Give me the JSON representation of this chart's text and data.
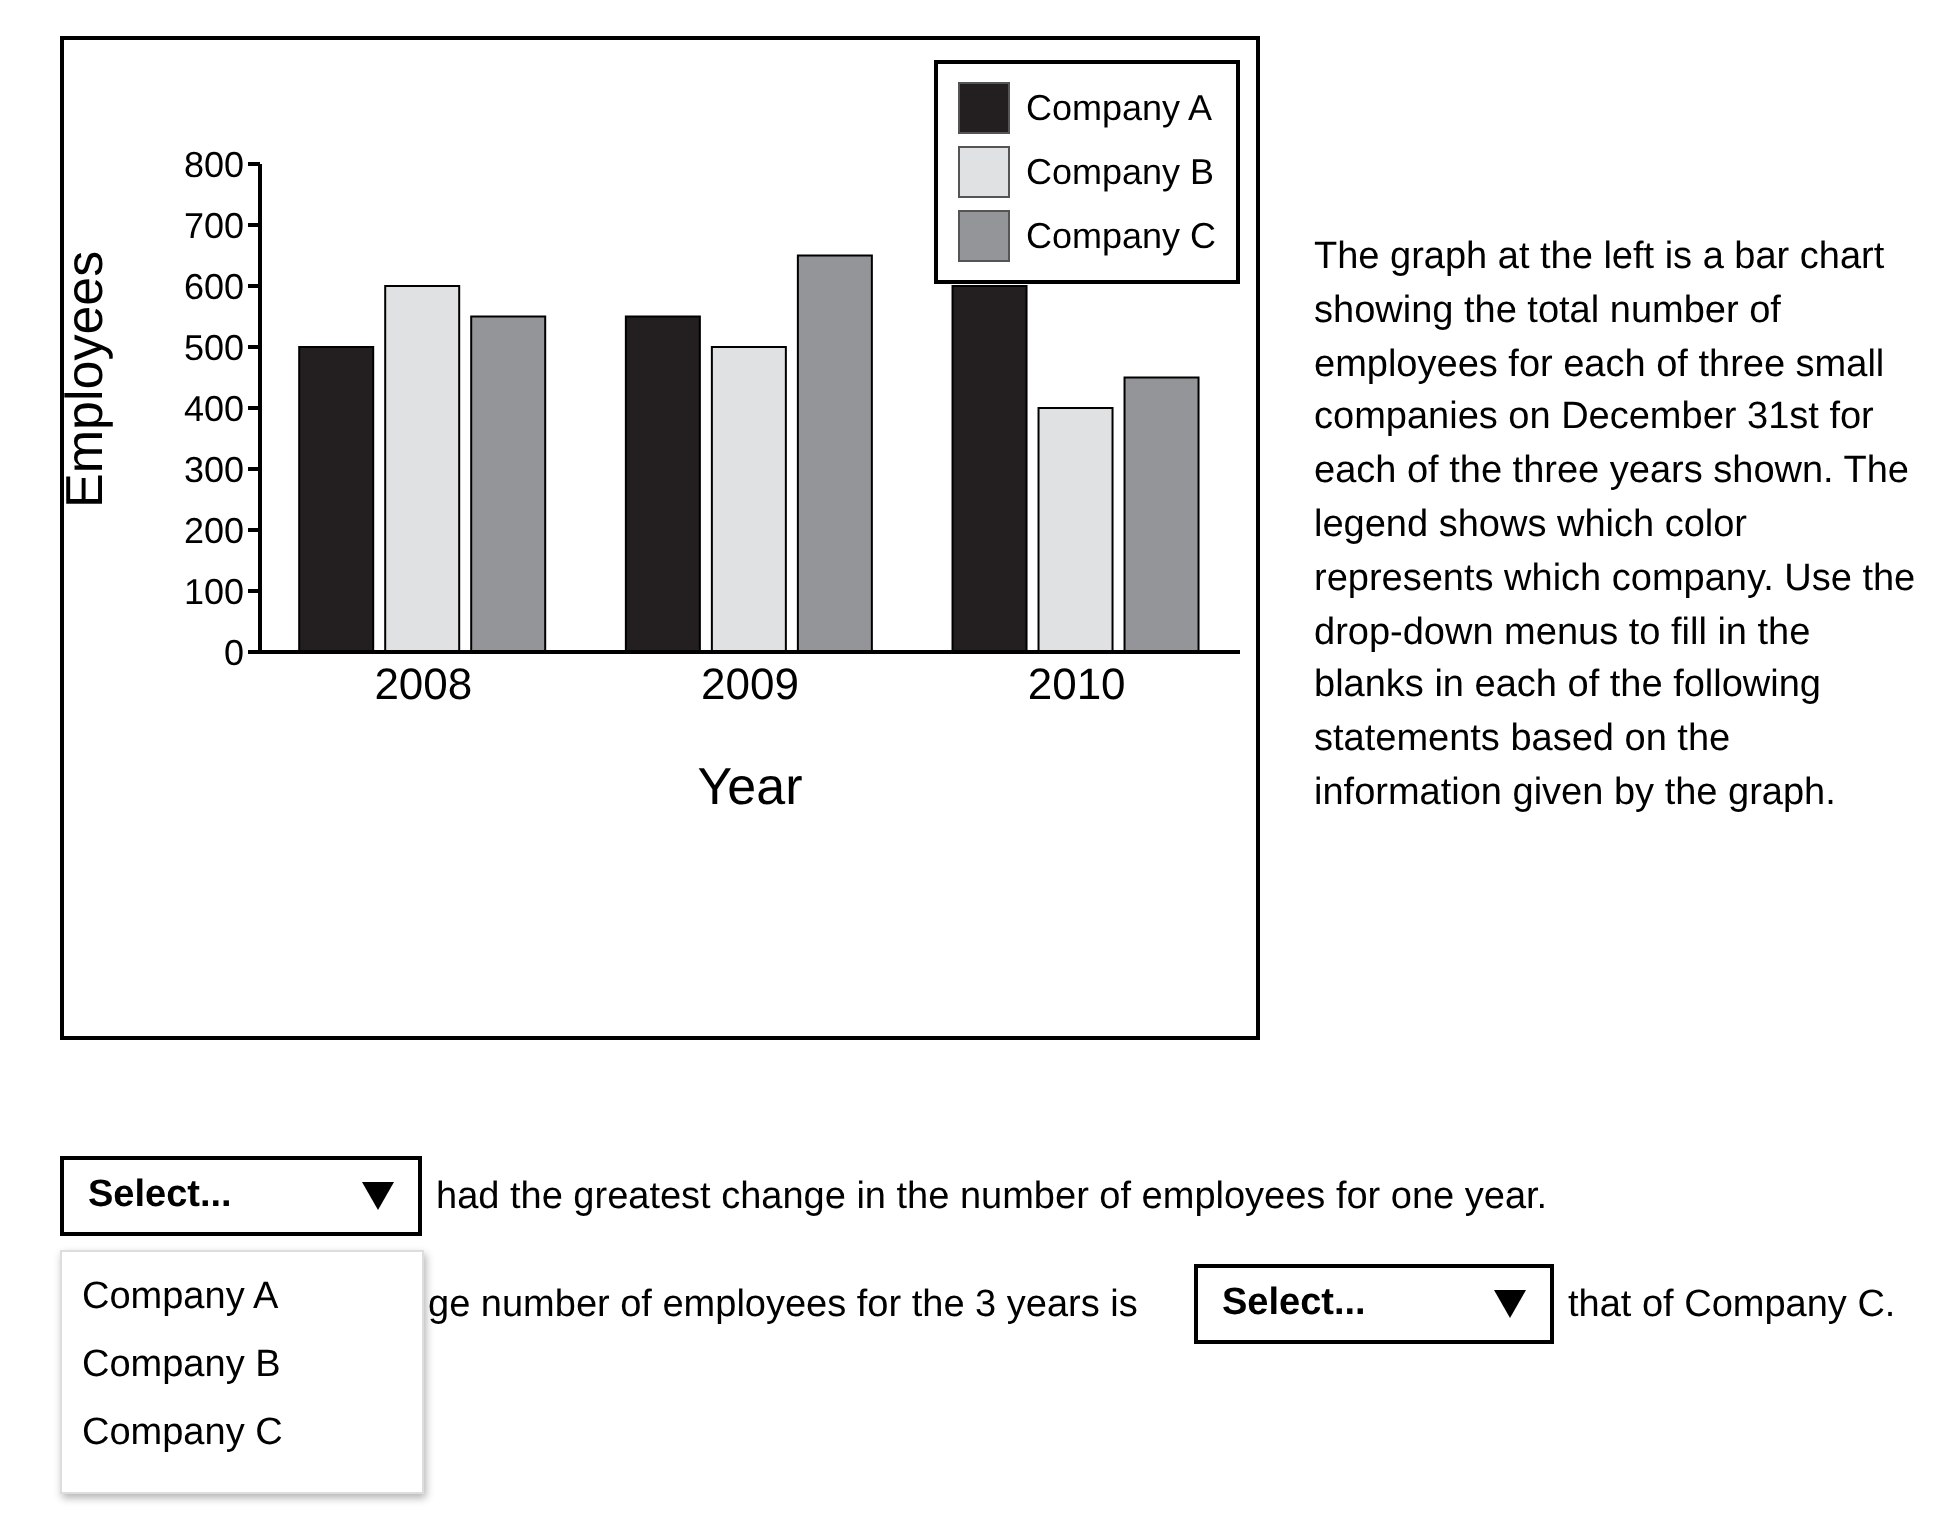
{
  "chart_data": {
    "type": "bar",
    "xlabel": "Year",
    "ylabel": "Employees",
    "categories": [
      "2008",
      "2009",
      "2010"
    ],
    "series": [
      {
        "name": "Company A",
        "color": "#231f20",
        "values": [
          500,
          550,
          600
        ]
      },
      {
        "name": "Company B",
        "color": "#e0e1e2",
        "values": [
          600,
          500,
          400
        ]
      },
      {
        "name": "Company C",
        "color": "#939598",
        "values": [
          550,
          650,
          450
        ]
      }
    ],
    "ylim": [
      0,
      800
    ],
    "yticks": [
      0,
      100,
      200,
      300,
      400,
      500,
      600,
      700,
      800
    ],
    "legend": "top right",
    "annotations": [
      "The graph at the left is a bar chart showing the total number of employees for each of three small companies on December 31st for each of the three years shown. The legend shows which color represents which company. Use the drop-down menus to fill in the blanks in each of the following statements based on the information given by the graph.",
      "Select...",
      "had the greatest change in the number of employees for one year.",
      "ge number of employees for the 3 years is",
      "Select...",
      "that of Company C.",
      "Company A",
      "Company B",
      "Company C"
    ]
  }
}
